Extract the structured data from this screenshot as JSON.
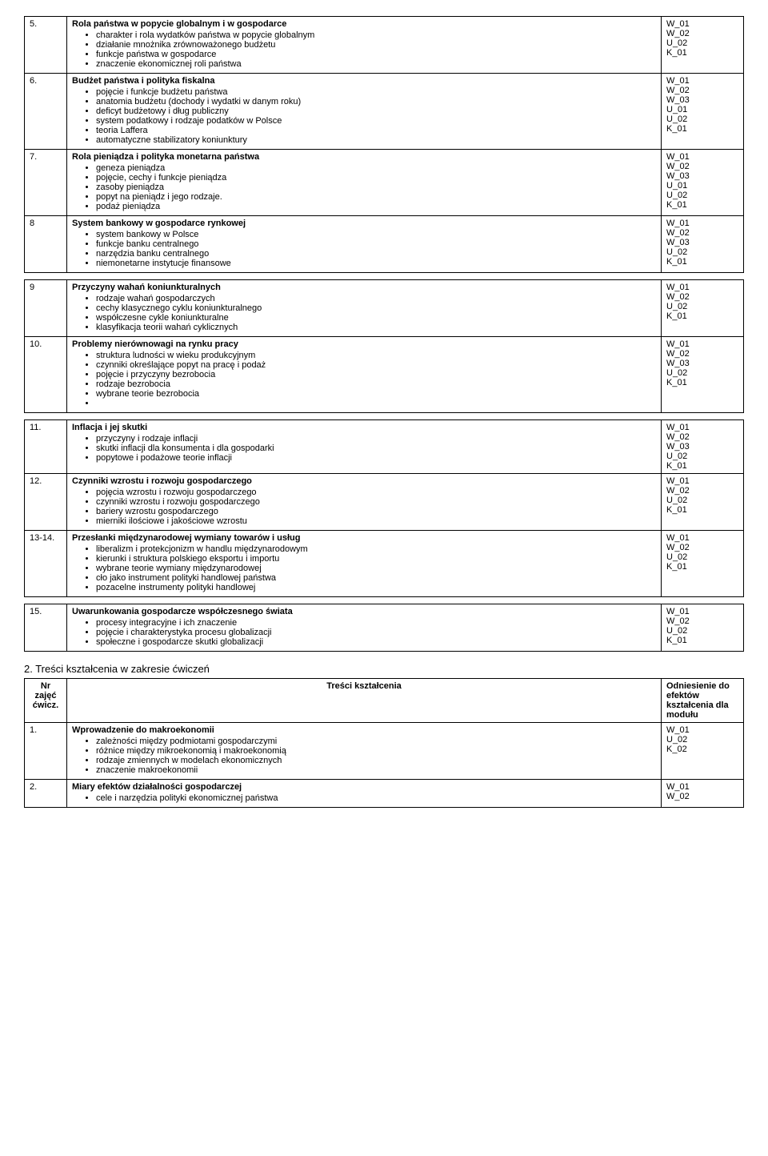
{
  "rows": [
    {
      "num": "5.",
      "title": "Rola państwa w popycie globalnym i w gospodarce",
      "bullets": [
        "charakter i rola wydatków państwa w popycie globalnym",
        "działanie mnożnika zrównoważonego budżetu",
        "funkcje państwa w gospodarce",
        "znaczenie ekonomicznej roli państwa"
      ],
      "codes": [
        "W_01",
        "W_02",
        "U_02",
        "K_01"
      ]
    },
    {
      "num": "6.",
      "title": "Budżet państwa i polityka fiskalna",
      "bullets": [
        "pojęcie i funkcje budżetu państwa",
        "anatomia budżetu (dochody i wydatki w danym roku)",
        "deficyt budżetowy i dług publiczny",
        "system podatkowy i rodzaje podatków w Polsce",
        "teoria Laffera",
        "automatyczne stabilizatory koniunktury"
      ],
      "codes": [
        "W_01",
        "W_02",
        "W_03",
        "U_01",
        "U_02",
        "K_01"
      ]
    },
    {
      "num": "7.",
      "title": "Rola pieniądza i polityka monetarna państwa",
      "bullets": [
        "geneza pieniądza",
        "pojęcie, cechy i funkcje pieniądza",
        "zasoby pieniądza",
        "popyt na pieniądz i jego rodzaje.",
        "podaż pieniądza"
      ],
      "codes": [
        "W_01",
        "W_02",
        "W_03",
        "U_01",
        "U_02",
        "K_01"
      ]
    },
    {
      "num": "8",
      "title": "System bankowy w gospodarce rynkowej",
      "bullets": [
        "system bankowy w Polsce",
        "funkcje banku centralnego",
        "narzędzia banku centralnego",
        "niemonetarne instytucje finansowe"
      ],
      "codes": [
        "W_01",
        "W_02",
        "W_03",
        "U_02",
        "K_01"
      ]
    },
    {
      "num": "9",
      "title": "Przyczyny wahań koniunkturalnych",
      "bullets": [
        "rodzaje wahań gospodarczych",
        "cechy klasycznego cyklu koniunkturalnego",
        "współczesne cykle koniunkturalne",
        "klasyfikacja teorii wahań cyklicznych"
      ],
      "codes": [
        "W_01",
        "W_02",
        "U_02",
        "K_01"
      ]
    },
    {
      "num": "10.",
      "title": "Problemy nierównowagi na rynku pracy",
      "bullets": [
        "struktura ludności w wieku produkcyjnym",
        "czynniki określające popyt na pracę i podaż",
        "pojęcie i przyczyny bezrobocia",
        "rodzaje bezrobocia",
        "wybrane teorie bezrobocia",
        ""
      ],
      "codes": [
        "W_01",
        "W_02",
        "W_03",
        "U_02",
        "K_01"
      ]
    },
    {
      "num": "11.",
      "title": "Inflacja i jej skutki",
      "bullets": [
        "przyczyny i rodzaje inflacji",
        "skutki inflacji dla konsumenta i dla gospodarki",
        "popytowe i podażowe teorie inflacji"
      ],
      "codes": [
        "W_01",
        "W_02",
        "W_03",
        "U_02",
        "K_01"
      ]
    },
    {
      "num": "12.",
      "title": "Czynniki wzrostu i rozwoju  gospodarczego",
      "bullets": [
        "pojęcia wzrostu i rozwoju gospodarczego",
        "czynniki wzrostu i rozwoju gospodarczego",
        "bariery wzrostu gospodarczego",
        "mierniki ilościowe i jakościowe wzrostu"
      ],
      "codes": [
        "W_01",
        "W_02",
        "U_02",
        "K_01"
      ]
    },
    {
      "num": "13-14.",
      "title": "Przesłanki międzynarodowej wymiany towarów i usług",
      "bullets": [
        "liberalizm i protekcjonizm w handlu międzynarodowym",
        "kierunki i struktura polskiego eksportu i importu",
        "wybrane teorie wymiany międzynarodowej",
        "cło jako instrument polityki handlowej państwa",
        "pozacelne instrumenty polityki handlowej"
      ],
      "codes": [
        "W_01",
        "W_02",
        "U_02",
        "K_01"
      ]
    },
    {
      "num": "15.",
      "title": "Uwarunkowania gospodarcze współczesnego świata",
      "bullets": [
        "procesy integracyjne i ich znaczenie",
        "pojęcie i charakterystyka procesu globalizacji",
        "społeczne i gospodarcze skutki globalizacji"
      ],
      "codes": [
        "W_01",
        "W_02",
        "U_02",
        "K_01"
      ]
    }
  ],
  "groupBreaks": [
    4,
    6,
    9
  ],
  "section2": {
    "heading": "2.  Treści kształcenia w zakresie ćwiczeń",
    "headers": {
      "col1": "Nr zajęć ćwicz.",
      "col2": "Treści kształcenia",
      "col3": "Odniesienie do efektów kształcenia dla modułu"
    },
    "rows": [
      {
        "num": "1.",
        "title": "Wprowadzenie do makroekonomii",
        "bullets": [
          "zależności między podmiotami gospodarczymi",
          "różnice między mikroekonomią i makroekonomią",
          "rodzaje zmiennych w modelach ekonomicznych",
          "znaczenie makroekonomii"
        ],
        "codes": [
          "W_01",
          "U_02",
          "K_02"
        ]
      },
      {
        "num": "2.",
        "title": "Miary efektów działalności gospodarczej",
        "bullets": [
          "cele i narzędzia polityki ekonomicznej państwa"
        ],
        "codes": [
          "W_01",
          "W_02"
        ]
      }
    ]
  }
}
